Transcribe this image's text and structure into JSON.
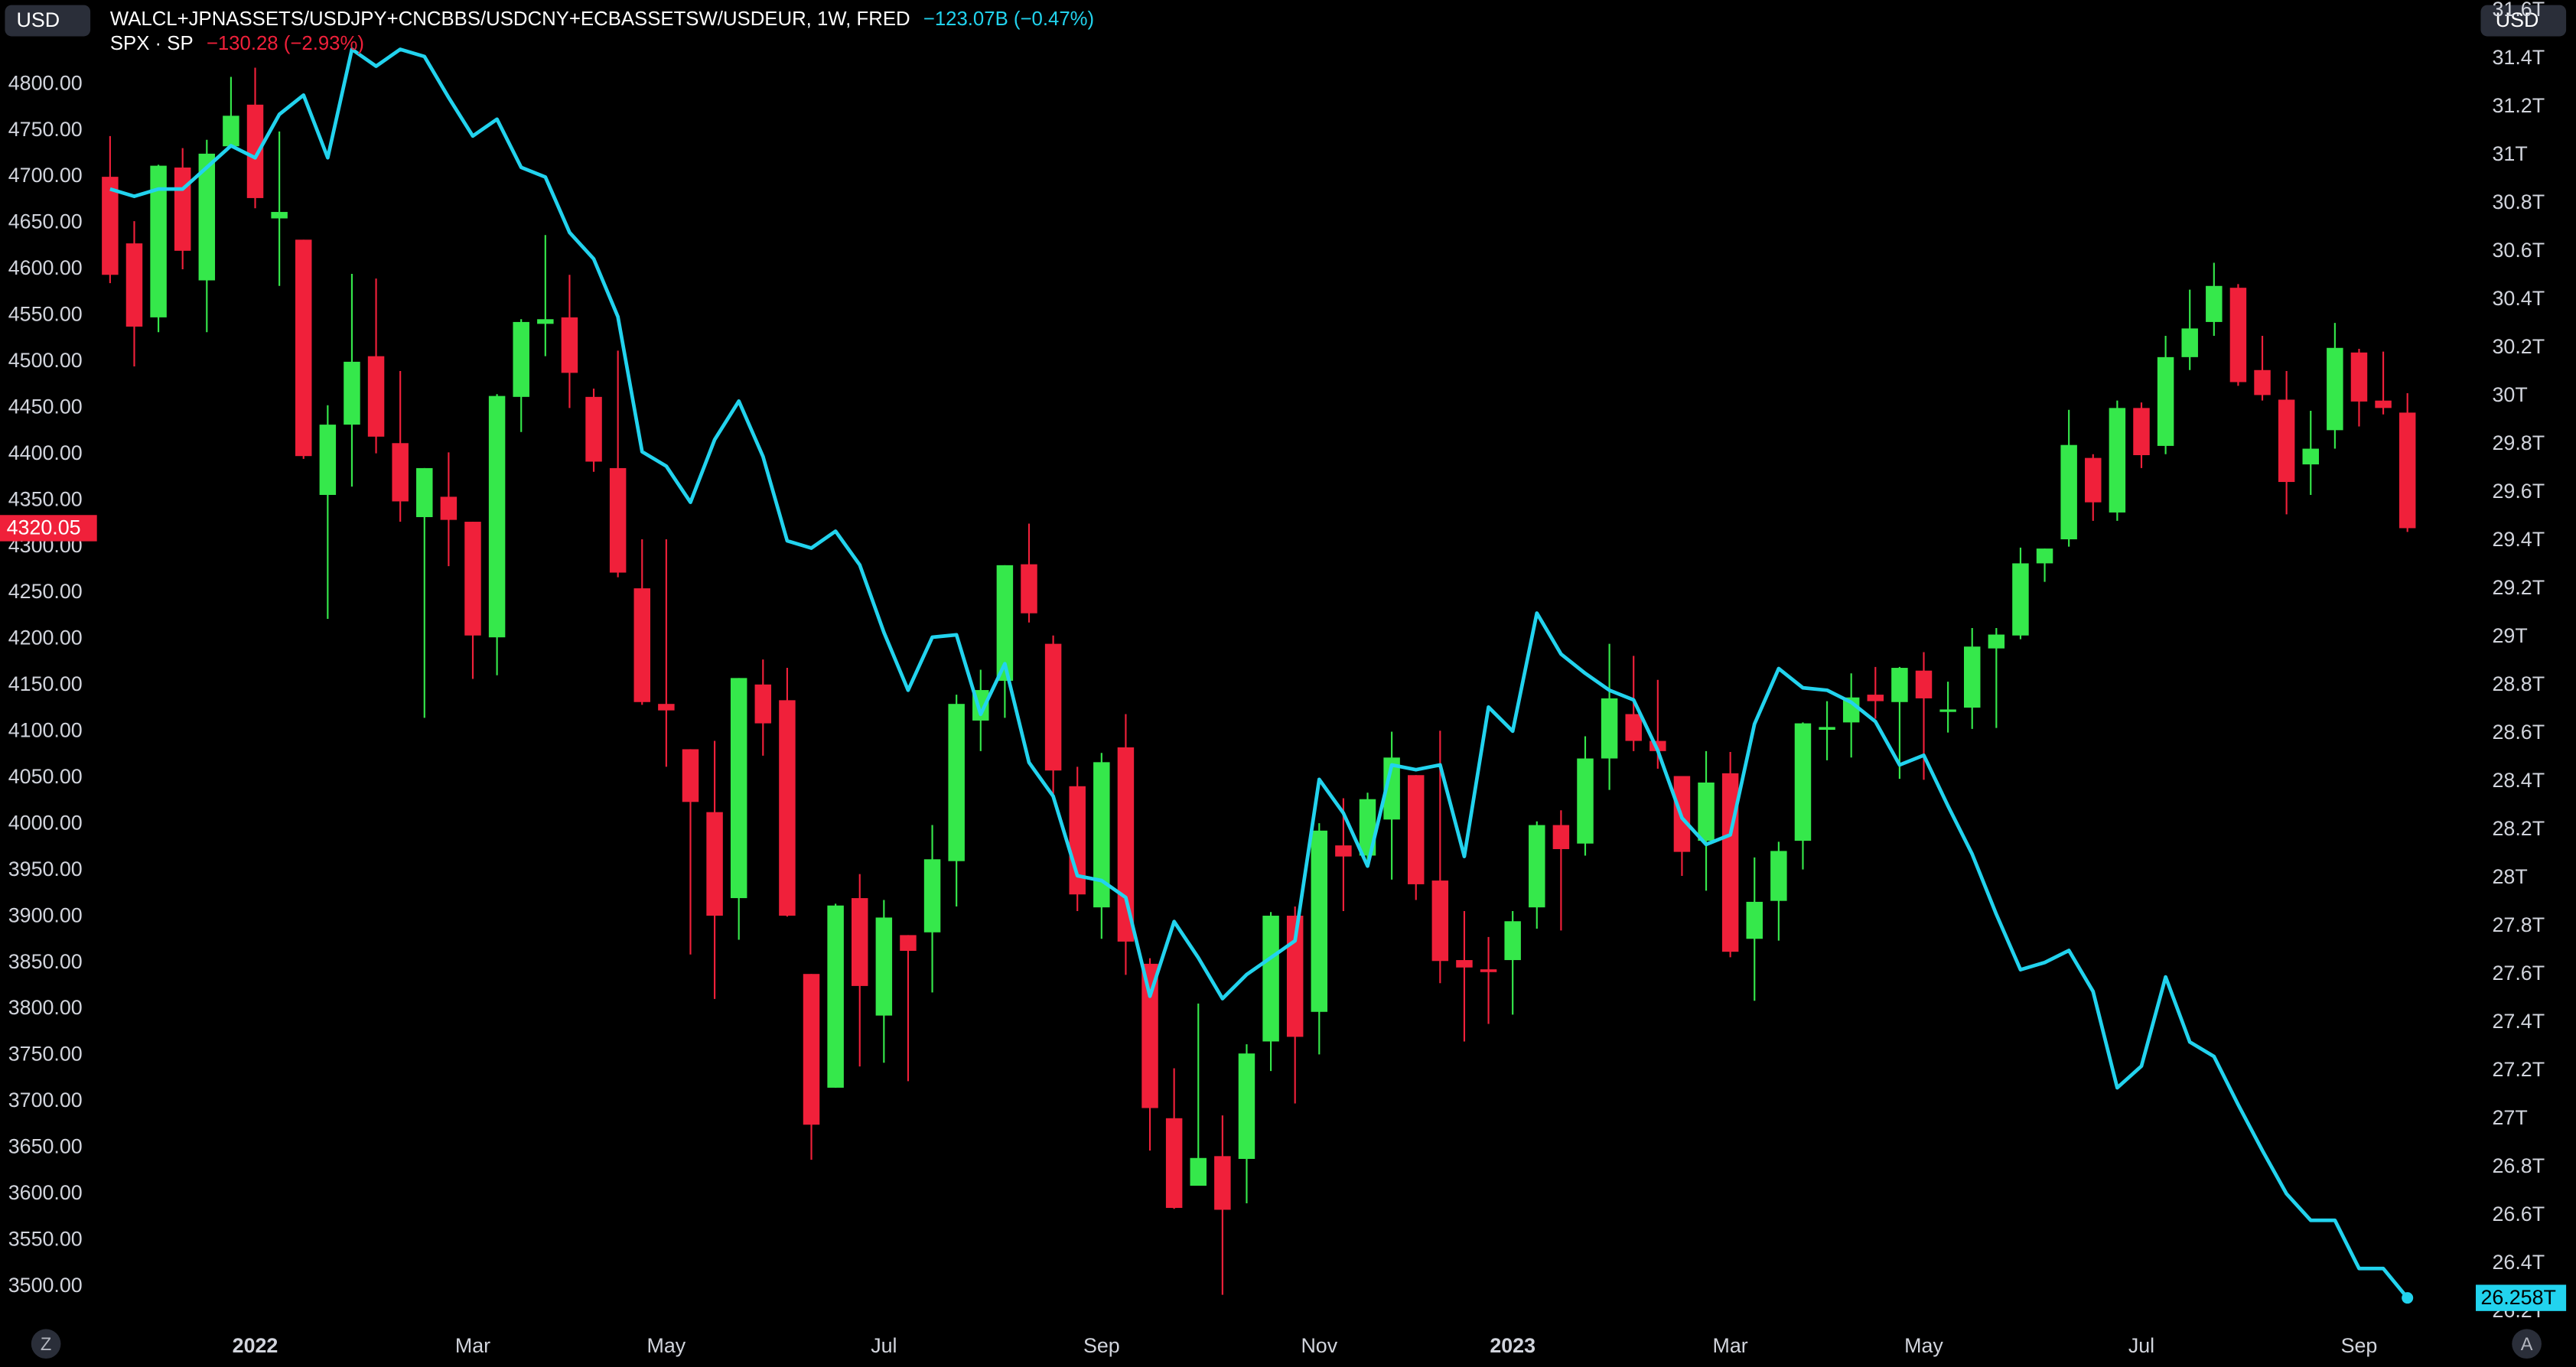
{
  "chart_data": {
    "type": "candlestick",
    "currency_left": "USD",
    "currency_right": "USD",
    "corner_left": "Z",
    "corner_right": "A",
    "grid": false,
    "categories": [
      null,
      null,
      null,
      null,
      null,
      null,
      "2022",
      null,
      null,
      null,
      null,
      null,
      null,
      null,
      null,
      "Mar",
      null,
      null,
      null,
      null,
      null,
      null,
      null,
      "May",
      null,
      null,
      null,
      null,
      null,
      null,
      null,
      null,
      "Jul",
      null,
      null,
      null,
      null,
      null,
      null,
      null,
      null,
      "Sep",
      null,
      null,
      null,
      null,
      null,
      null,
      null,
      null,
      "Nov",
      null,
      null,
      null,
      null,
      null,
      null,
      null,
      "2023",
      null,
      null,
      null,
      null,
      null,
      null,
      null,
      null,
      "Mar",
      null,
      null,
      null,
      null,
      null,
      null,
      null,
      "May",
      null,
      null,
      null,
      null,
      null,
      null,
      null,
      null,
      "Jul",
      null,
      null,
      null,
      null,
      null,
      null,
      null,
      null,
      "Sep",
      null,
      null
    ],
    "ylim": [
      3470,
      4891
    ],
    "yticks": [
      {
        "value": 3500,
        "label": "3500.00"
      },
      {
        "value": 3550,
        "label": "3550.00"
      },
      {
        "value": 3600,
        "label": "3600.00"
      },
      {
        "value": 3650,
        "label": "3650.00"
      },
      {
        "value": 3700,
        "label": "3700.00"
      },
      {
        "value": 3750,
        "label": "3750.00"
      },
      {
        "value": 3800,
        "label": "3800.00"
      },
      {
        "value": 3850,
        "label": "3850.00"
      },
      {
        "value": 3900,
        "label": "3900.00"
      },
      {
        "value": 3950,
        "label": "3950.00"
      },
      {
        "value": 4000,
        "label": "4000.00"
      },
      {
        "value": 4050,
        "label": "4050.00"
      },
      {
        "value": 4100,
        "label": "4100.00"
      },
      {
        "value": 4150,
        "label": "4150.00"
      },
      {
        "value": 4200,
        "label": "4200.00"
      },
      {
        "value": 4250,
        "label": "4250.00"
      },
      {
        "value": 4300,
        "label": "4300.00"
      },
      {
        "value": 4350,
        "label": "4350.00"
      },
      {
        "value": 4400,
        "label": "4400.00"
      },
      {
        "value": 4450,
        "label": "4450.00"
      },
      {
        "value": 4500,
        "label": "4500.00"
      },
      {
        "value": 4550,
        "label": "4550.00"
      },
      {
        "value": 4600,
        "label": "4600.00"
      },
      {
        "value": 4650,
        "label": "4650.00"
      },
      {
        "value": 4700,
        "label": "4700.00"
      },
      {
        "value": 4750,
        "label": "4750.00"
      },
      {
        "value": 4800,
        "label": "4800.00"
      }
    ],
    "y2lim": [
      26.19,
      31.644
    ],
    "y2ticks": [
      {
        "value": 26.2,
        "label": "26.2T"
      },
      {
        "value": 26.4,
        "label": "26.4T"
      },
      {
        "value": 26.6,
        "label": "26.6T"
      },
      {
        "value": 26.8,
        "label": "26.8T"
      },
      {
        "value": 27,
        "label": "27T"
      },
      {
        "value": 27.2,
        "label": "27.2T"
      },
      {
        "value": 27.4,
        "label": "27.4T"
      },
      {
        "value": 27.6,
        "label": "27.6T"
      },
      {
        "value": 27.8,
        "label": "27.8T"
      },
      {
        "value": 28,
        "label": "28T"
      },
      {
        "value": 28.2,
        "label": "28.2T"
      },
      {
        "value": 28.4,
        "label": "28.4T"
      },
      {
        "value": 28.6,
        "label": "28.6T"
      },
      {
        "value": 28.8,
        "label": "28.8T"
      },
      {
        "value": 29,
        "label": "29T"
      },
      {
        "value": 29.2,
        "label": "29.2T"
      },
      {
        "value": 29.4,
        "label": "29.4T"
      },
      {
        "value": 29.6,
        "label": "29.6T"
      },
      {
        "value": 29.8,
        "label": "29.8T"
      },
      {
        "value": 30,
        "label": "30T"
      },
      {
        "value": 30.2,
        "label": "30.2T"
      },
      {
        "value": 30.4,
        "label": "30.4T"
      },
      {
        "value": 30.6,
        "label": "30.6T"
      },
      {
        "value": 30.8,
        "label": "30.8T"
      },
      {
        "value": 31,
        "label": "31T"
      },
      {
        "value": 31.2,
        "label": "31.2T"
      },
      {
        "value": 31.4,
        "label": "31.4T"
      },
      {
        "value": 31.6,
        "label": "31.6T"
      }
    ],
    "series": [
      {
        "name": "WALCL+JPNASSETS/USDJPY+CNCBBS/USDCNY+ECBASSETSW/USDEUR, 1W, FRED",
        "change": "−123.07B (−0.47%)",
        "type": "line",
        "axis": "y2",
        "color": "#22d3ee",
        "values": [
          30.86,
          30.83,
          30.86,
          30.86,
          30.95,
          31.04,
          30.99,
          31.17,
          31.25,
          30.99,
          31.44,
          31.37,
          31.44,
          31.41,
          31.24,
          31.08,
          31.15,
          30.95,
          30.91,
          30.68,
          30.57,
          30.33,
          29.77,
          29.71,
          29.56,
          29.82,
          29.98,
          29.75,
          29.4,
          29.37,
          29.44,
          29.3,
          29.02,
          28.78,
          29,
          29.01,
          28.68,
          28.89,
          28.48,
          28.34,
          28.01,
          27.99,
          27.92,
          27.51,
          27.82,
          27.67,
          27.5,
          27.6,
          27.67,
          27.74,
          28.41,
          28.27,
          28.05,
          28.47,
          28.45,
          28.47,
          28.09,
          28.71,
          28.61,
          29.1,
          28.93,
          28.85,
          28.78,
          28.74,
          28.53,
          28.25,
          28.14,
          28.18,
          28.64,
          28.87,
          28.79,
          28.78,
          28.73,
          28.65,
          28.47,
          28.51,
          28.3,
          28.1,
          27.85,
          27.62,
          27.65,
          27.7,
          27.53,
          27.13,
          27.22,
          27.59,
          27.32,
          27.26,
          27.06,
          26.87,
          26.69,
          26.58,
          26.58,
          26.38,
          26.38,
          26.258
        ],
        "value_labels": [
          null,
          null,
          null,
          null,
          null,
          null,
          null,
          null,
          null,
          null,
          null,
          null,
          null,
          null,
          null,
          null,
          null,
          null,
          null,
          null,
          null,
          null,
          null,
          null,
          null,
          null,
          null,
          null,
          null,
          null,
          null,
          null,
          null,
          null,
          null,
          null,
          null,
          null,
          null,
          null,
          null,
          null,
          null,
          null,
          null,
          null,
          null,
          null,
          null,
          null,
          null,
          null,
          null,
          null,
          null,
          null,
          null,
          null,
          null,
          null,
          null,
          null,
          null,
          null,
          null,
          null,
          null,
          null,
          null,
          null,
          null,
          null,
          null,
          null,
          null,
          null,
          null,
          null,
          null,
          null,
          null,
          null,
          null,
          null,
          null,
          null,
          null,
          null,
          null,
          null,
          null,
          null,
          null,
          null,
          null,
          "26.258T"
        ]
      },
      {
        "name": "SPX · SP",
        "change": "−130.28 (−2.93%)",
        "type": "candlestick",
        "axis": "y",
        "color": "#f0203a",
        "up_color": "#35e84b",
        "down_color": "#f0203a",
        "open": [
          4700,
          4628,
          4548,
          4710,
          4588,
          4733,
          4778,
          4655,
          4632,
          4356,
          4432,
          4506,
          4412,
          4332,
          4354,
          4327,
          4202,
          4462,
          4541,
          4548,
          4462,
          4385,
          4255,
          4130,
          4081,
          4013,
          3920,
          4151,
          4134,
          3838,
          3715,
          3920,
          3793,
          3880,
          3883,
          3960,
          4112,
          4155,
          4281,
          4195,
          4041,
          3910,
          4083,
          3849,
          3682,
          3609,
          3641,
          3638,
          3765,
          3901,
          3797,
          3977,
          3966,
          4005,
          4053,
          3939,
          3853,
          3843,
          3853,
          3910,
          3999,
          3979,
          4071,
          4119,
          4090,
          4052,
          3982,
          4055,
          3876,
          3917,
          3982,
          4102,
          4110,
          4140,
          4132,
          4166,
          4123,
          4126,
          4190,
          4204,
          4282,
          4308,
          4396,
          4337,
          4450,
          4409,
          4505,
          4543,
          4580,
          4491,
          4459,
          4389,
          4426,
          4510,
          4458,
          4445
        ],
        "high": [
          4744,
          4652,
          4713,
          4731,
          4740,
          4808,
          4818,
          4749,
          4632,
          4453,
          4595,
          4590,
          4490,
          4385,
          4402,
          4327,
          4465,
          4546,
          4637,
          4594,
          4471,
          4512,
          4308,
          4308,
          4081,
          4090,
          4158,
          4178,
          4169,
          3838,
          3914,
          3946,
          3918,
          3880,
          3999,
          4140,
          4167,
          4280,
          4325,
          4204,
          4062,
          4077,
          4119,
          3855,
          3736,
          3806,
          3685,
          3762,
          3905,
          3911,
          4001,
          4028,
          4034,
          4100,
          4053,
          4101,
          3906,
          3878,
          3906,
          4003,
          4015,
          4095,
          4195,
          4182,
          4156,
          4052,
          4079,
          4078,
          3964,
          3981,
          4110,
          4133,
          4163,
          4170,
          4170,
          4186,
          4154,
          4212,
          4212,
          4299,
          4298,
          4448,
          4400,
          4458,
          4456,
          4528,
          4578,
          4607,
          4584,
          4528,
          4490,
          4447,
          4542,
          4514,
          4511,
          4466
        ],
        "low": [
          4585,
          4495,
          4532,
          4600,
          4532,
          4733,
          4666,
          4582,
          4395,
          4222,
          4365,
          4401,
          4327,
          4115,
          4279,
          4157,
          4161,
          4424,
          4506,
          4450,
          4381,
          4267,
          4129,
          4062,
          3859,
          3811,
          3875,
          4074,
          3900,
          3637,
          3715,
          3738,
          3742,
          3722,
          3818,
          3911,
          4079,
          4115,
          4218,
          4030,
          3906,
          3876,
          3837,
          3647,
          3584,
          3609,
          3491,
          3590,
          3733,
          3698,
          3751,
          3906,
          3956,
          3940,
          3918,
          3828,
          3765,
          3784,
          3794,
          3887,
          3885,
          3966,
          4037,
          4079,
          4060,
          3944,
          3928,
          3856,
          3809,
          3874,
          3951,
          4069,
          4072,
          4114,
          4049,
          4048,
          4099,
          4103,
          4104,
          4200,
          4262,
          4300,
          4328,
          4328,
          4385,
          4400,
          4491,
          4528,
          4474,
          4458,
          4335,
          4356,
          4406,
          4430,
          4443,
          4316
        ],
        "close": [
          4594,
          4538,
          4712,
          4620,
          4725,
          4766,
          4677,
          4662,
          4398,
          4432,
          4500,
          4419,
          4349,
          4385,
          4329,
          4204,
          4463,
          4543,
          4546,
          4488,
          4392,
          4272,
          4132,
          4123,
          4024,
          3901,
          4158,
          4109,
          3901,
          3675,
          3912,
          3825,
          3899,
          3863,
          3962,
          4130,
          4145,
          4280,
          4228,
          4058,
          3924,
          4067,
          3873,
          3693,
          3585,
          3639,
          3583,
          3752,
          3901,
          3770,
          3993,
          3965,
          4027,
          4072,
          3935,
          3852,
          3845,
          3840,
          3895,
          3999,
          3973,
          4071,
          4136,
          4090,
          4079,
          3970,
          4045,
          3862,
          3916,
          3971,
          4109,
          4105,
          4137,
          4133,
          4169,
          4136,
          4124,
          4192,
          4205,
          4282,
          4298,
          4410,
          4348,
          4450,
          4399,
          4505,
          4536,
          4582,
          4478,
          4464,
          4370,
          4406,
          4515,
          4457,
          4450,
          4320.05
        ]
      }
    ]
  }
}
